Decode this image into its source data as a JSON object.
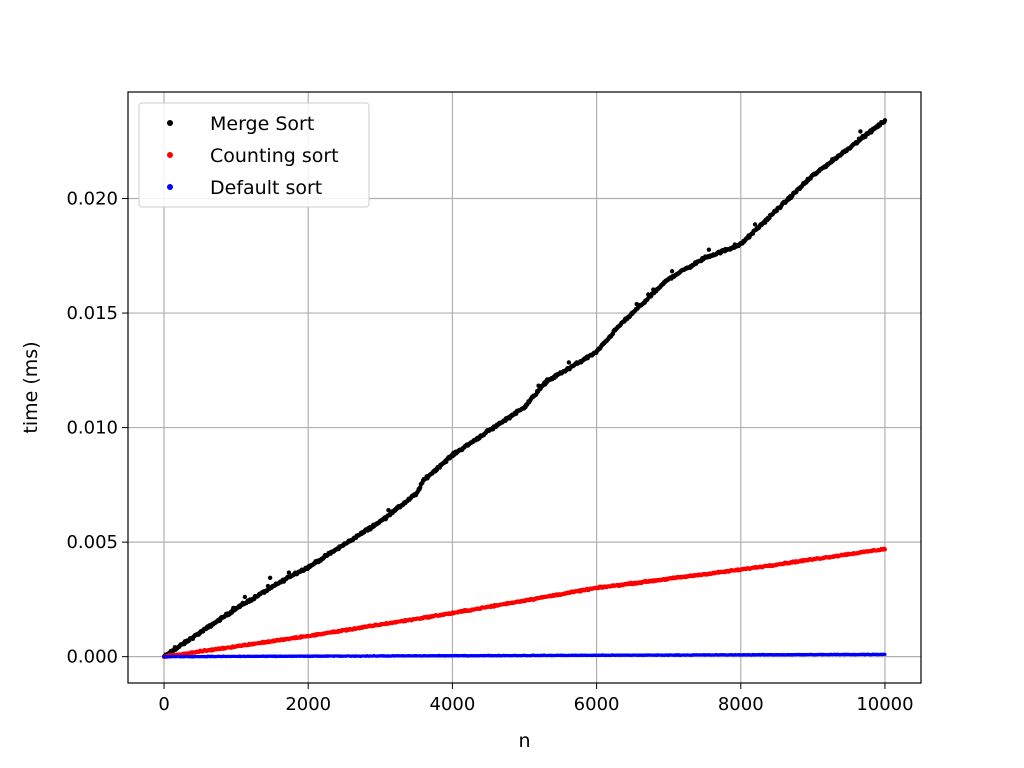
{
  "chart_data": {
    "type": "scatter",
    "xlabel": "n",
    "ylabel": "time (ms)",
    "xlim": [
      -500,
      10500
    ],
    "ylim": [
      -0.00115,
      0.02465
    ],
    "xticks": [
      0,
      2000,
      4000,
      6000,
      8000,
      10000
    ],
    "xtick_labels": [
      "0",
      "2000",
      "4000",
      "6000",
      "8000",
      "10000"
    ],
    "yticks": [
      0.0,
      0.005,
      0.01,
      0.015,
      0.02
    ],
    "ytick_labels": [
      "0.000",
      "0.005",
      "0.010",
      "0.015",
      "0.020"
    ],
    "grid": true,
    "legend_position": "top-left",
    "x_range": [
      0,
      10000
    ],
    "points_per_series": 1000,
    "series": [
      {
        "name": "Merge Sort",
        "color": "#000000",
        "x": [
          0,
          1000,
          1800,
          2000,
          3000,
          3500,
          3600,
          4000,
          5000,
          5300,
          6000,
          6300,
          7000,
          7500,
          8000,
          9000,
          10000
        ],
        "y": [
          0.0,
          0.0021,
          0.0036,
          0.0039,
          0.0059,
          0.0071,
          0.0077,
          0.0088,
          0.0109,
          0.012,
          0.0133,
          0.0144,
          0.0165,
          0.0174,
          0.018,
          0.021,
          0.0234
        ]
      },
      {
        "name": "Counting sort",
        "color": "#ff0000",
        "x": [
          0,
          2000,
          4000,
          6000,
          8000,
          10000
        ],
        "y": [
          0.0,
          0.0009,
          0.0019,
          0.003,
          0.0038,
          0.0047
        ]
      },
      {
        "name": "Default sort",
        "color": "#0000ff",
        "x": [
          0,
          5000,
          10000
        ],
        "y": [
          0.0,
          5e-05,
          0.0001
        ]
      }
    ]
  }
}
